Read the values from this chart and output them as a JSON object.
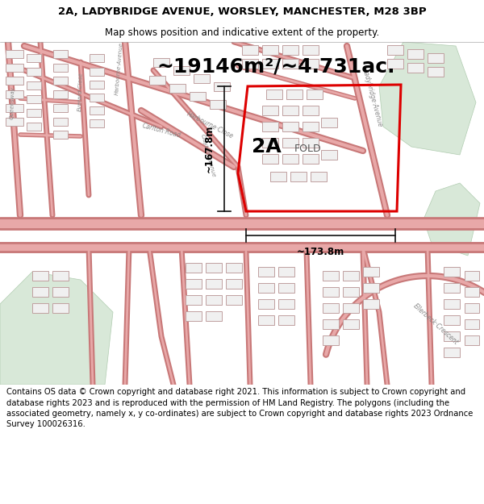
{
  "title_line1": "2A, LADYBRIDGE AVENUE, WORSLEY, MANCHESTER, M28 3BP",
  "title_line2": "Map shows position and indicative extent of the property.",
  "area_text": "~19146m²/~4.731ac.",
  "label_2A": "2A",
  "label_FOLD": "FOLD",
  "dim_vertical": "~167.8m",
  "dim_horizontal": "~173.8m",
  "footer": "Contains OS data © Crown copyright and database right 2021. This information is subject to Crown copyright and database rights 2023 and is reproduced with the permission of HM Land Registry. The polygons (including the associated geometry, namely x, y co-ordinates) are subject to Crown copyright and database rights 2023 Ordnance Survey 100026316.",
  "map_bg": "#f7f4f0",
  "road_line_color": "#e8a8a8",
  "road_outline_color": "#c87878",
  "building_fill": "#f0f0f0",
  "building_edge": "#c0a0a0",
  "green_fill": "#d8e8d8",
  "green_edge": "#b0ccb0",
  "highlight_edge": "#dd0000",
  "dim_line_color": "#111111",
  "title_fontsize": 9.5,
  "subtitle_fontsize": 8.5,
  "area_fontsize": 18,
  "dim_fontsize": 8.5,
  "label_2A_fontsize": 18,
  "label_FOLD_fontsize": 9,
  "footer_fontsize": 7.2,
  "road_label_color": "#888888",
  "road_label_fontsize": 5.5,
  "white": "#ffffff",
  "black": "#000000"
}
